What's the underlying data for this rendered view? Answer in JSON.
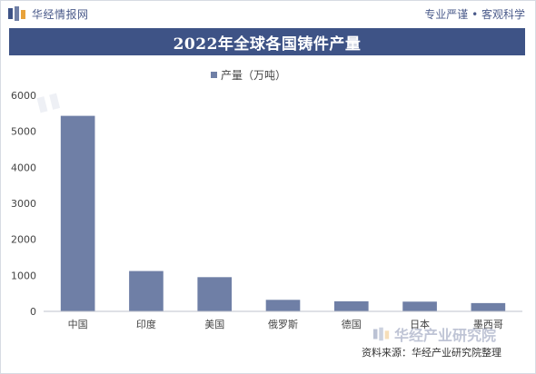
{
  "header": {
    "brand": "华经情报网",
    "tagline": "专业严谨 • 客观科学"
  },
  "footer": {
    "source": "资料来源：华经产业研究院整理",
    "watermark_brand": "华经产业研究院"
  },
  "colors": {
    "title_bg": "#3e5386",
    "bar": "#6f7fa6",
    "brand": "#4a5a8a"
  },
  "chart_data": {
    "type": "bar",
    "title": "2022年全球各国铸件产量",
    "legend_position": "top-center",
    "grid": false,
    "categories": [
      "中国",
      "印度",
      "美国",
      "俄罗斯",
      "德国",
      "日本",
      "墨西哥"
    ],
    "series": [
      {
        "name": "产量（万吨）",
        "values": [
          5430,
          1120,
          950,
          320,
          280,
          270,
          230
        ]
      }
    ],
    "ylim": [
      0,
      6000
    ],
    "yticks": [
      0,
      1000,
      2000,
      3000,
      4000,
      5000,
      6000
    ]
  }
}
